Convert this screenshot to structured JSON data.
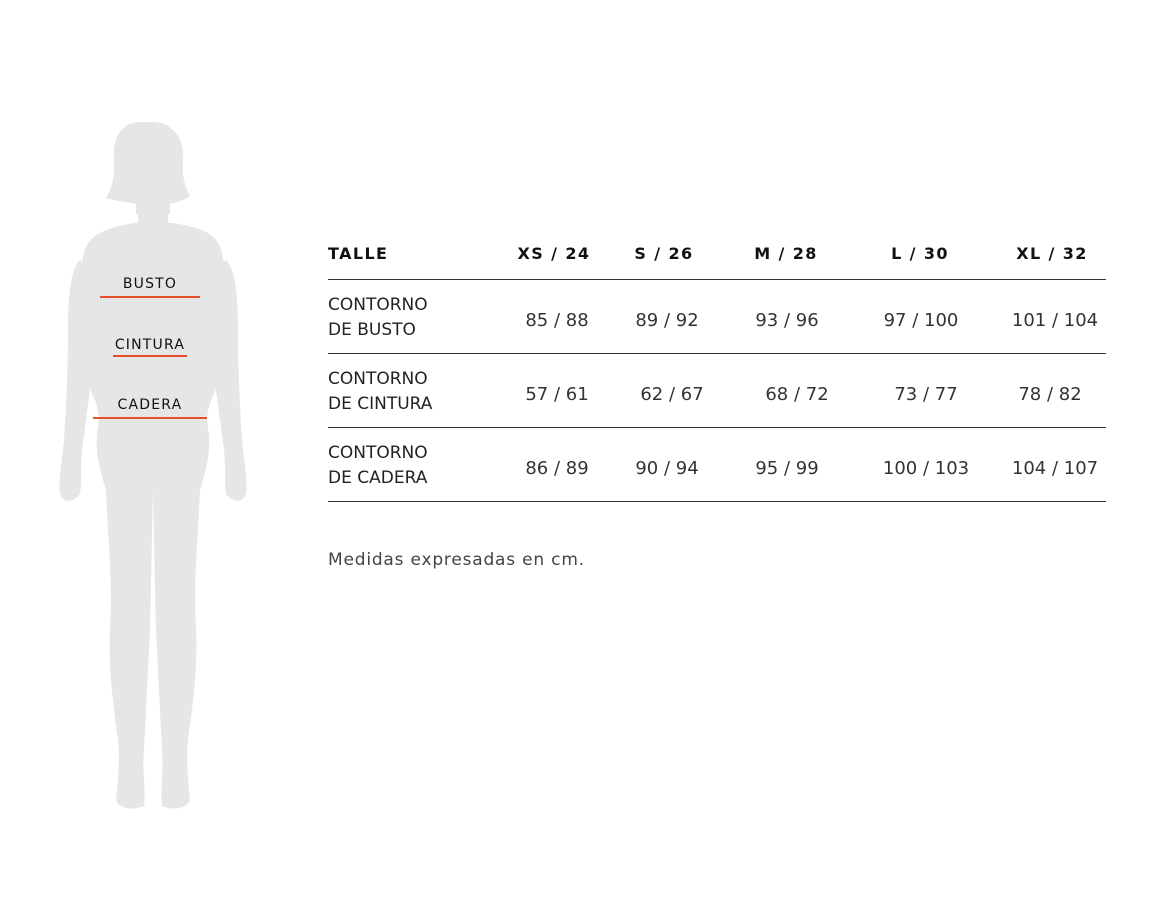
{
  "figure": {
    "silhouette_color": "#e6e6e6",
    "accent_color": "#e8502b",
    "labels": {
      "bust": "BUSTO",
      "waist": "CINTURA",
      "hip": "CADERA"
    }
  },
  "table": {
    "headers": [
      "TALLE",
      "XS / 24",
      "S / 26",
      "M / 28",
      "L / 30",
      "XL / 32"
    ],
    "rows": [
      {
        "label_line1": "CONTORNO",
        "label_line2": "DE BUSTO",
        "values": [
          "85 / 88",
          "89 / 92",
          "93 / 96",
          "97 / 100",
          "101 / 104"
        ]
      },
      {
        "label_line1": "CONTORNO",
        "label_line2": "DE CINTURA",
        "values": [
          "57 / 61",
          "62 / 67",
          "68 / 72",
          "73 / 77",
          "78 / 82"
        ]
      },
      {
        "label_line1": "CONTORNO",
        "label_line2": "DE CADERA",
        "values": [
          "86 / 89",
          "90 / 94",
          "95 / 99",
          "100 / 103",
          "104 / 107"
        ]
      }
    ]
  },
  "note": "Medidas expresadas en cm."
}
